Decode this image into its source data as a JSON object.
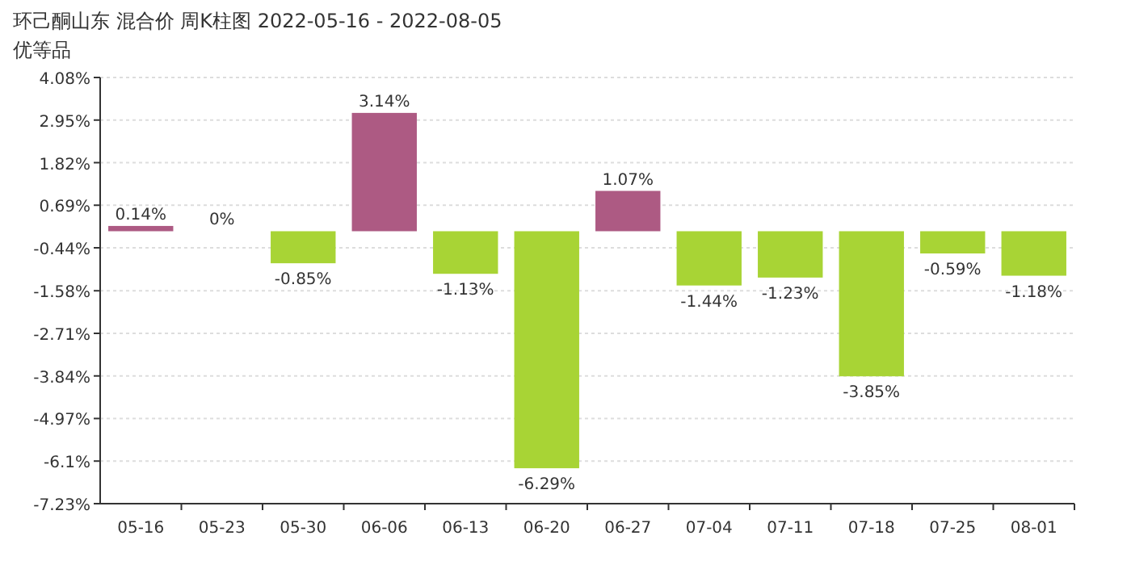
{
  "chart_data": {
    "type": "bar",
    "title": "环己酮山东 混合价 周K柱图 2022-05-16 - 2022-08-05",
    "subtitle": "优等品",
    "categories": [
      "05-16",
      "05-23",
      "05-30",
      "06-06",
      "06-13",
      "06-20",
      "06-27",
      "07-04",
      "07-11",
      "07-18",
      "07-25",
      "08-01"
    ],
    "values": [
      0.14,
      0,
      -0.85,
      3.14,
      -1.13,
      -6.29,
      1.07,
      -1.44,
      -1.23,
      -3.85,
      -0.59,
      -1.18
    ],
    "colors": [
      "#ad5a83",
      "#ad5a83",
      "#a8d435",
      "#ad5a83",
      "#a8d435",
      "#a8d435",
      "#ad5a83",
      "#a8d435",
      "#a8d435",
      "#a8d435",
      "#a8d435",
      "#a8d435"
    ],
    "value_labels": [
      "0.14%",
      "0%",
      "-0.85%",
      "3.14%",
      "-1.13%",
      "-6.29%",
      "1.07%",
      "-1.44%",
      "-1.23%",
      "-3.85%",
      "-0.59%",
      "-1.18%"
    ],
    "ylim": [
      -7.23,
      4.08
    ],
    "yticks": [
      {
        "value": 4.08,
        "label": "4.08%"
      },
      {
        "value": 2.95,
        "label": "2.95%"
      },
      {
        "value": 1.82,
        "label": "1.82%"
      },
      {
        "value": 0.69,
        "label": "0.69%"
      },
      {
        "value": -0.44,
        "label": "-0.44%"
      },
      {
        "value": -1.58,
        "label": "-1.58%"
      },
      {
        "value": -2.71,
        "label": "-2.71%"
      },
      {
        "value": -3.84,
        "label": "-3.84%"
      },
      {
        "value": -4.97,
        "label": "-4.97%"
      },
      {
        "value": -6.1,
        "label": "-6.1%"
      },
      {
        "value": -7.23,
        "label": "-7.23%"
      }
    ],
    "grid": "y"
  }
}
